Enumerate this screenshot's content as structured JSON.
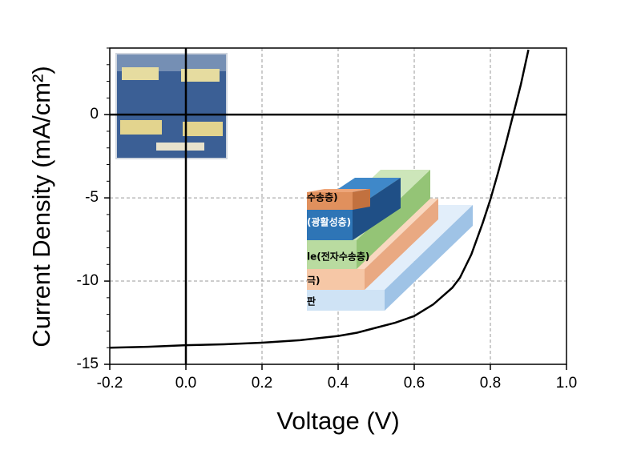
{
  "chart_data": {
    "type": "line",
    "x_label": "Voltage (V)",
    "y_label": "Current Density (mA/cm²)",
    "series": [
      {
        "color": "#000000",
        "x": [
          -0.2,
          -0.1,
          0.0,
          0.1,
          0.2,
          0.3,
          0.4,
          0.45,
          0.5,
          0.55,
          0.6,
          0.65,
          0.7,
          0.72,
          0.75,
          0.78,
          0.8,
          0.82,
          0.84,
          0.86,
          0.88,
          0.9
        ],
        "values": [
          -14.0,
          -13.95,
          -13.85,
          -13.8,
          -13.7,
          -13.55,
          -13.3,
          -13.1,
          -12.8,
          -12.5,
          -12.1,
          -11.4,
          -10.4,
          -9.8,
          -8.4,
          -6.5,
          -5.1,
          -3.5,
          -1.8,
          0.0,
          1.8,
          3.9
        ]
      }
    ],
    "xlim": [
      -0.2,
      1.0
    ],
    "ylim": [
      -15,
      4
    ],
    "xticks": [
      -0.2,
      {
        "value": 0,
        "label": "0.0"
      },
      0.2,
      0.4,
      0.6,
      0.8,
      {
        "value": 1,
        "label": "1.0"
      }
    ],
    "yticks": [
      -15,
      -10,
      -5,
      0
    ],
    "grid": true,
    "annotations": [
      "수송층)",
      "(광활성층)",
      "le(전자수송층)",
      "극)",
      "판"
    ]
  }
}
